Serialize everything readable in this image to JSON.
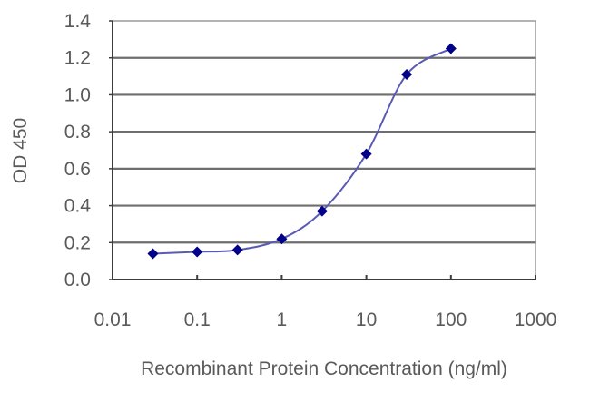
{
  "chart_data": {
    "type": "line",
    "title": "",
    "xlabel": "Recombinant Protein Concentration (ng/ml)",
    "ylabel": "OD 450",
    "xscale": "log",
    "xlim": [
      0.01,
      1000
    ],
    "ylim": [
      0.0,
      1.4
    ],
    "x_tick_labels": [
      "0.01",
      "0.1",
      "1",
      "10",
      "100",
      "1000"
    ],
    "x_ticks": [
      0.01,
      0.1,
      1,
      10,
      100,
      1000
    ],
    "y_tick_labels": [
      "0.0",
      "0.2",
      "0.4",
      "0.6",
      "0.8",
      "1.0",
      "1.2",
      "1.4"
    ],
    "y_ticks": [
      0.0,
      0.2,
      0.4,
      0.6,
      0.8,
      1.0,
      1.2,
      1.4
    ],
    "grid": "horizontal",
    "legend": "none",
    "series": [
      {
        "name": "OD 450",
        "color": "#00008b",
        "marker": "diamond",
        "x": [
          0.03,
          0.1,
          0.3,
          1,
          3,
          10,
          30,
          100
        ],
        "values": [
          0.14,
          0.15,
          0.16,
          0.22,
          0.37,
          0.68,
          1.11,
          1.25
        ]
      }
    ]
  },
  "colors": {
    "line": "#5a5ab4",
    "marker": "#00008b",
    "gridline": "#6e6e6e",
    "axis": "#3c3c3c",
    "text": "#5a5a5a"
  }
}
